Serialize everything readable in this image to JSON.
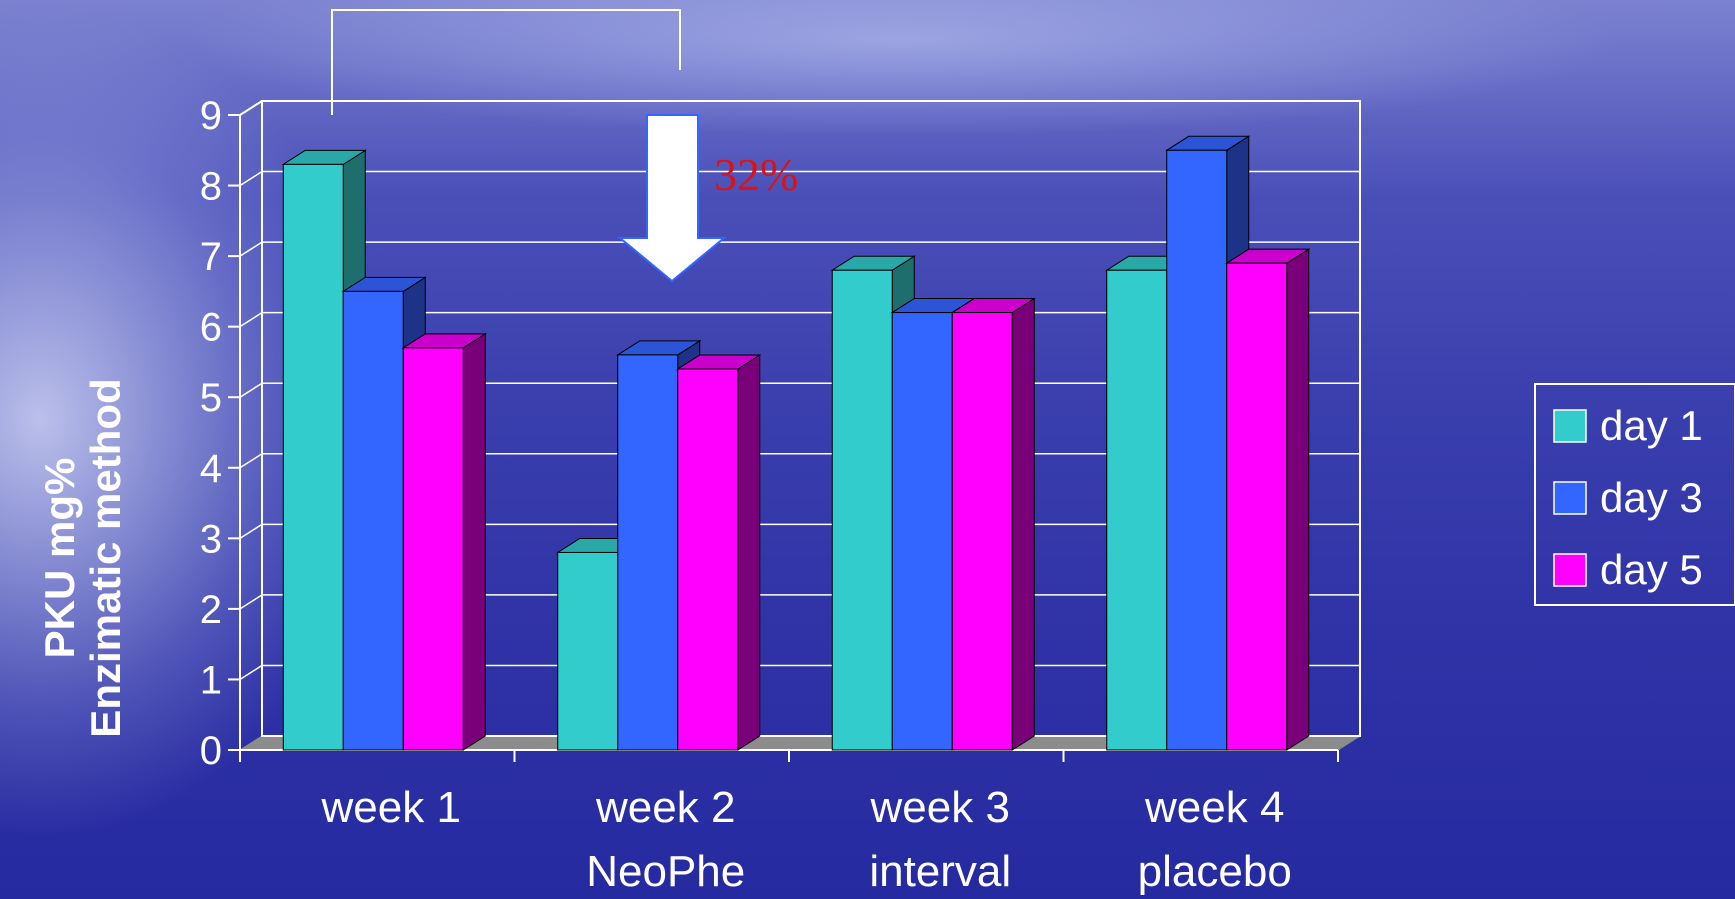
{
  "chart_data": {
    "type": "bar",
    "categories": [
      [
        "week 1"
      ],
      [
        "week 2",
        "NeoPhe"
      ],
      [
        "week 3",
        "interval"
      ],
      [
        "week 4",
        "placebo"
      ]
    ],
    "series": [
      {
        "name": "day 1",
        "values": [
          8.3,
          2.8,
          6.8,
          6.8
        ]
      },
      {
        "name": "day 3",
        "values": [
          6.5,
          5.6,
          6.2,
          8.5
        ]
      },
      {
        "name": "day 5",
        "values": [
          5.7,
          5.4,
          6.2,
          6.9
        ]
      }
    ],
    "ylabel": [
      "PKU mg%",
      "Enzimatic method"
    ],
    "ylim": [
      0,
      9
    ],
    "yticks": [
      0,
      1,
      2,
      3,
      4,
      5,
      6,
      7,
      8,
      9
    ],
    "grid": true,
    "legend_position": "right",
    "annotation": {
      "text": "32%",
      "arrow": "down",
      "color": "#e01010"
    },
    "colors": {
      "day 1": {
        "front": "#33cccc",
        "top": "#2aa8a8",
        "side": "#1f6e6e"
      },
      "day 3": {
        "front": "#3366ff",
        "top": "#2b55d6",
        "side": "#1c3388"
      },
      "day 5": {
        "front": "#ff00ff",
        "top": "#cc00cc",
        "side": "#7a007a"
      }
    }
  }
}
